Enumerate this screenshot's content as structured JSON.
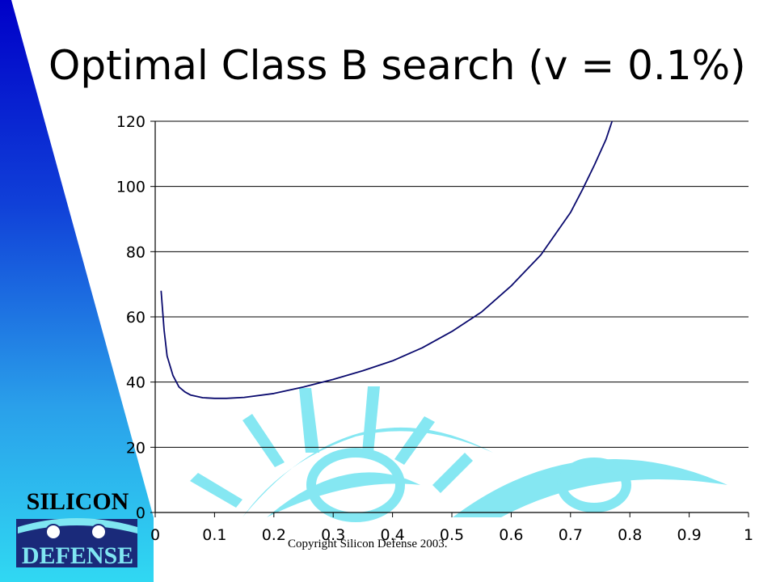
{
  "slide": {
    "title": "Optimal Class B search (v = 0.1%)",
    "footer": "Copyright Silicon Defense 2003.",
    "logo": {
      "line1": "SILICON",
      "line2": "DEFENSE"
    }
  },
  "colors": {
    "curve": "#0a0a6e",
    "wedge_top": "#0000c8",
    "wedge_bottom": "#22ccee",
    "eye_art": "#7fe6f2",
    "logo_bg": "#1a2a7a"
  },
  "chart_data": {
    "type": "line",
    "title": "",
    "xlabel": "",
    "ylabel": "",
    "xlim": [
      0,
      1
    ],
    "ylim": [
      0,
      120
    ],
    "x_ticks": [
      "0",
      "0.1",
      "0.2",
      "0.3",
      "0.4",
      "0.5",
      "0.6",
      "0.7",
      "0.8",
      "0.9",
      "1"
    ],
    "y_ticks": [
      "0",
      "20",
      "40",
      "60",
      "80",
      "100",
      "120"
    ],
    "grid": "horizontal",
    "legend": "none",
    "series": [
      {
        "x": [
          0.01,
          0.015,
          0.02,
          0.03,
          0.04,
          0.05,
          0.06,
          0.08,
          0.1,
          0.12,
          0.15,
          0.2,
          0.25,
          0.3,
          0.35,
          0.4,
          0.45,
          0.5,
          0.55,
          0.6,
          0.65,
          0.7,
          0.72,
          0.74,
          0.76,
          0.77
        ],
        "y": [
          68,
          56,
          48,
          42,
          38.5,
          37,
          36,
          35.2,
          35,
          35,
          35.3,
          36.5,
          38.5,
          40.8,
          43.5,
          46.5,
          50.5,
          55.5,
          61.5,
          69.5,
          79,
          92,
          99,
          106.5,
          114.5,
          120
        ]
      }
    ]
  }
}
